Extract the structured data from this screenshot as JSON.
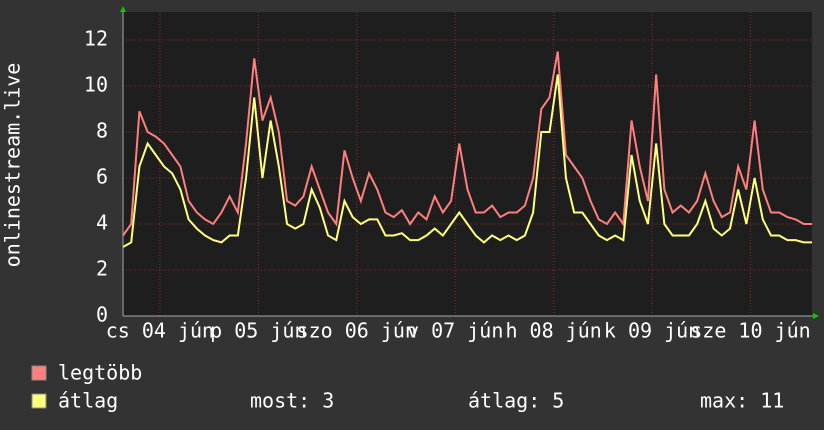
{
  "chart_data": {
    "type": "line",
    "y_label": "onlinestream.live",
    "x": [
      0,
      2,
      4,
      6,
      8,
      10,
      12,
      14,
      16,
      18,
      20,
      22,
      24,
      26,
      28,
      30,
      32,
      34,
      36,
      38,
      40,
      42,
      44,
      46,
      48,
      50,
      52,
      54,
      56,
      58,
      60,
      62,
      64,
      66,
      68,
      70,
      72,
      74,
      76,
      78,
      80,
      82,
      84,
      86,
      88,
      90,
      92,
      94,
      96,
      98,
      100,
      102,
      104,
      106,
      108,
      110,
      112,
      114,
      116,
      118,
      120,
      122,
      124,
      126,
      128,
      130,
      132,
      134,
      136,
      138,
      140,
      142,
      144,
      146,
      148,
      150,
      152,
      154,
      156,
      158,
      160,
      162,
      164,
      166,
      168
    ],
    "series": [
      {
        "name": "legtöbb",
        "color": "#ff7f7f",
        "values": [
          3.5,
          4,
          8.9,
          8,
          7.8,
          7.5,
          7,
          6.5,
          5,
          4.5,
          4.2,
          4,
          4.5,
          5.2,
          4.5,
          7.5,
          11.2,
          8.5,
          9.5,
          8,
          5,
          4.8,
          5.2,
          6.5,
          5.5,
          4.5,
          4,
          7.2,
          6,
          5,
          6.2,
          5.5,
          4.5,
          4.3,
          4.6,
          4,
          4.5,
          4.2,
          5.2,
          4.5,
          5,
          7.5,
          5.5,
          4.5,
          4.5,
          4.8,
          4.3,
          4.5,
          4.5,
          4.8,
          6,
          9,
          9.5,
          11.5,
          7,
          6.5,
          6,
          5,
          4.2,
          4,
          4.5,
          4,
          8.5,
          6.5,
          5,
          10.5,
          5.5,
          4.5,
          4.8,
          4.5,
          5,
          6.2,
          5,
          4.3,
          4.5,
          6.5,
          5.5,
          8.5,
          5.5,
          4.5,
          4.5,
          4.3,
          4.2,
          4,
          4
        ]
      },
      {
        "name": "átlag",
        "color": "#ffff7f",
        "values": [
          3,
          3.2,
          6.5,
          7.5,
          7,
          6.5,
          6.2,
          5.5,
          4.2,
          3.8,
          3.5,
          3.3,
          3.2,
          3.5,
          3.5,
          6,
          9.5,
          6,
          8.5,
          6.5,
          4,
          3.8,
          4,
          5.5,
          4.7,
          3.5,
          3.3,
          5,
          4.3,
          4,
          4.2,
          4.2,
          3.5,
          3.5,
          3.6,
          3.3,
          3.3,
          3.5,
          3.8,
          3.5,
          4,
          4.5,
          4,
          3.5,
          3.2,
          3.5,
          3.3,
          3.5,
          3.3,
          3.5,
          4.5,
          8,
          8,
          10.5,
          6,
          4.5,
          4.5,
          4,
          3.5,
          3.3,
          3.5,
          3.3,
          7,
          5,
          4,
          7.5,
          4,
          3.5,
          3.5,
          3.5,
          4,
          5,
          3.8,
          3.5,
          3.8,
          5.5,
          4,
          6,
          4.2,
          3.5,
          3.5,
          3.3,
          3.3,
          3.2,
          3.2
        ]
      }
    ],
    "xlim": [
      0,
      168
    ],
    "xticks": [
      {
        "value": 9,
        "label": "cs 04 jún"
      },
      {
        "value": 33,
        "label": "p 05 jún"
      },
      {
        "value": 57,
        "label": "szo 06 jún"
      },
      {
        "value": 81,
        "label": "v 07 jún"
      },
      {
        "value": 105,
        "label": "h 08 jún"
      },
      {
        "value": 129,
        "label": "k 09 jún"
      },
      {
        "value": 153,
        "label": "sze 10 jún"
      }
    ],
    "ylim": [
      0,
      13
    ],
    "yticks": [
      0,
      2,
      4,
      6,
      8,
      10,
      12
    ],
    "grid": true,
    "stats": [
      "most: 3",
      "átlag: 5",
      "max: 11"
    ]
  }
}
